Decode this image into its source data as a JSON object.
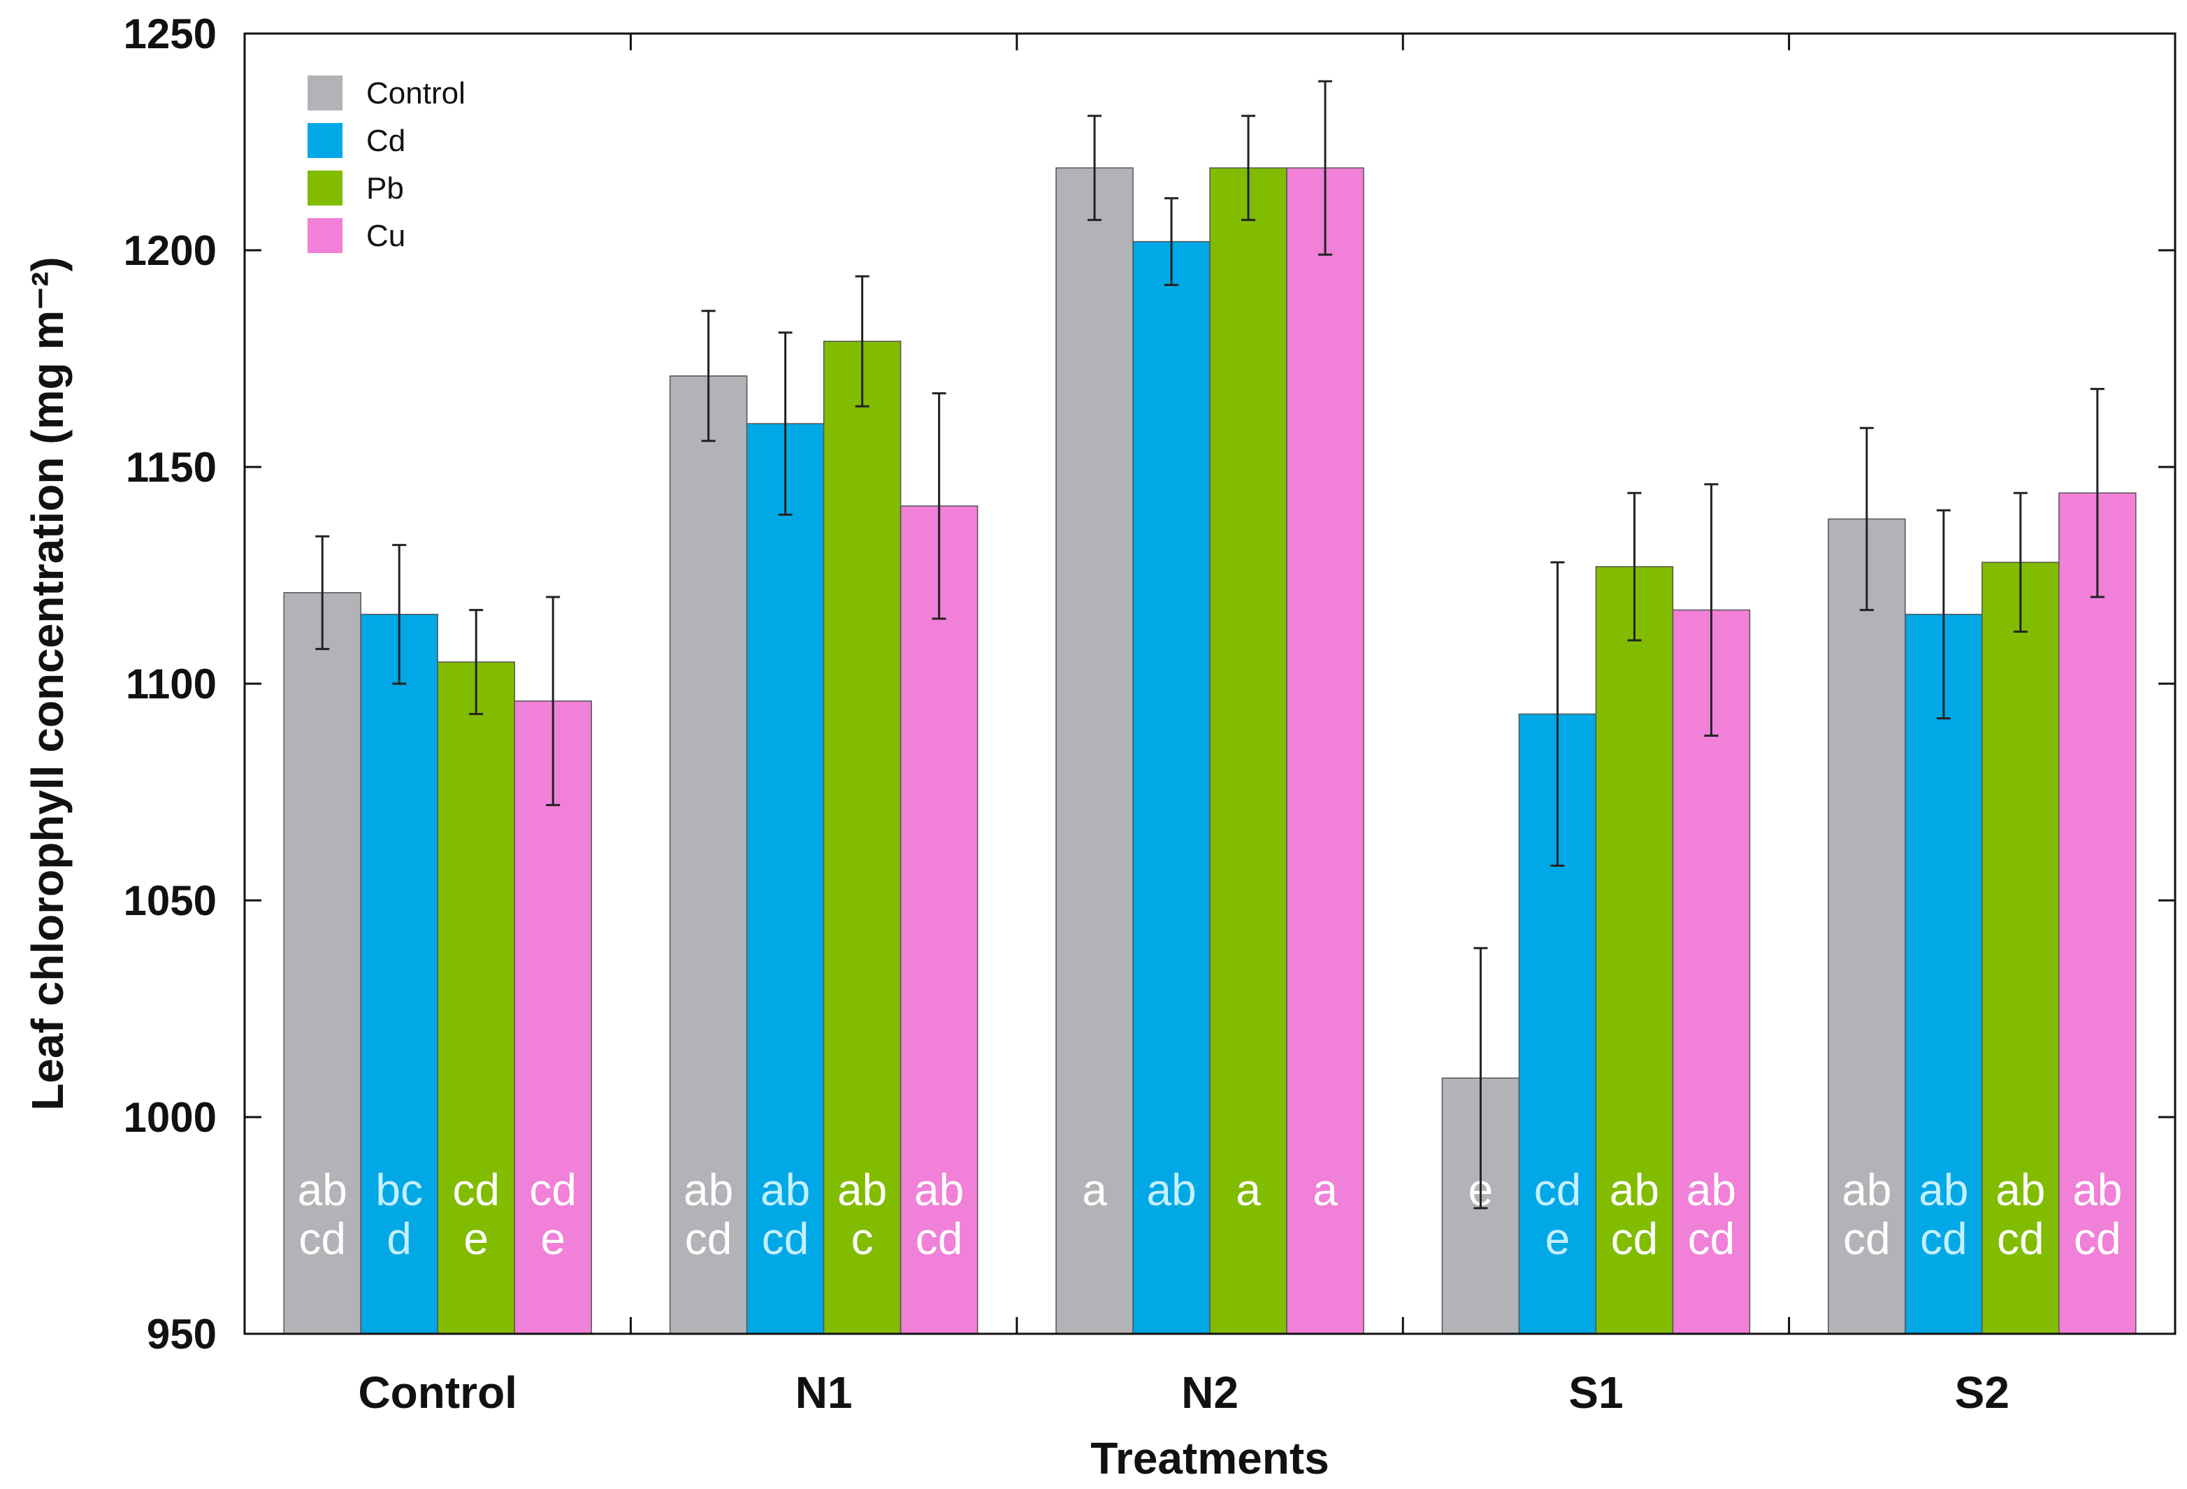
{
  "chart_data": {
    "type": "bar",
    "title": "",
    "xlabel": "Treatments",
    "ylabel": "Leaf chlorophyll concentration (mg m⁻²)",
    "ylim": [
      950,
      1250
    ],
    "yticks": [
      "950",
      "1000",
      "1050",
      "1100",
      "1150",
      "1200",
      "1250"
    ],
    "categories": [
      "Control",
      "N1",
      "N2",
      "S1",
      "S2"
    ],
    "legend_position": "top-left",
    "series": [
      {
        "name": "Control",
        "color": "#b2b3b7",
        "label_color": "#ffffff",
        "values": [
          1121,
          1171,
          1219,
          1009,
          1138
        ],
        "errors": [
          13,
          15,
          12,
          30,
          21
        ],
        "letters": [
          [
            "ab",
            "cd"
          ],
          [
            "ab",
            "cd"
          ],
          [
            "a"
          ],
          [
            "e"
          ],
          [
            "ab",
            "cd"
          ]
        ]
      },
      {
        "name": "Cd",
        "color": "#00a8e6",
        "label_color": "#c4f0ff",
        "values": [
          1116,
          1160,
          1202,
          1093,
          1116
        ],
        "errors": [
          16,
          21,
          10,
          35,
          24
        ],
        "letters": [
          [
            "bc",
            "d"
          ],
          [
            "ab",
            "cd"
          ],
          [
            "ab"
          ],
          [
            "cd",
            "e"
          ],
          [
            "ab",
            "cd"
          ]
        ]
      },
      {
        "name": "Pb",
        "color": "#82bc00",
        "label_color": "#ffffff",
        "values": [
          1105,
          1179,
          1219,
          1127,
          1128
        ],
        "errors": [
          12,
          15,
          12,
          17,
          16
        ],
        "letters": [
          [
            "cd",
            "e"
          ],
          [
            "ab",
            "c"
          ],
          [
            "a"
          ],
          [
            "ab",
            "cd"
          ],
          [
            "ab",
            "cd"
          ]
        ]
      },
      {
        "name": "Cu",
        "color": "#f080d8",
        "label_color": "#ffffff",
        "values": [
          1096,
          1141,
          1219,
          1117,
          1144
        ],
        "errors": [
          24,
          26,
          20,
          29,
          24
        ],
        "letters": [
          [
            "cd",
            "e"
          ],
          [
            "ab",
            "cd"
          ],
          [
            "a"
          ],
          [
            "ab",
            "cd"
          ],
          [
            "ab",
            "cd"
          ]
        ]
      }
    ]
  }
}
